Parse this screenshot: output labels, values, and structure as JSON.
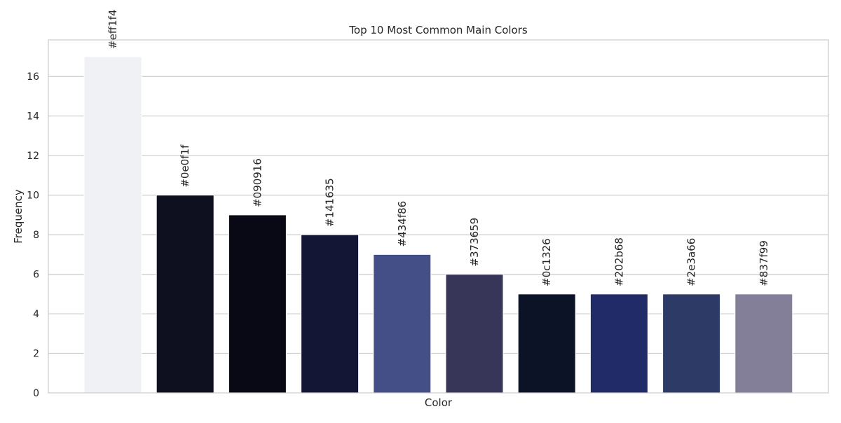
{
  "chart_data": {
    "type": "bar",
    "title": "Top 10 Most Common Main Colors",
    "xlabel": "Color",
    "ylabel": "Frequency",
    "categories": [
      "#eff1f4",
      "#0e0f1f",
      "#090916",
      "#141635",
      "#434f86",
      "#373659",
      "#0c1326",
      "#202b68",
      "#2e3a66",
      "#837f99"
    ],
    "values": [
      17,
      10,
      9,
      8,
      7,
      6,
      5,
      5,
      5,
      5
    ],
    "bar_colors": [
      "#eff1f4",
      "#0e0f1f",
      "#090916",
      "#141635",
      "#434f86",
      "#373659",
      "#0c1326",
      "#202b68",
      "#2e3a66",
      "#837f99"
    ],
    "ylim": [
      0,
      17.85
    ],
    "yticks": [
      0,
      2,
      4,
      6,
      8,
      10,
      12,
      14,
      16
    ],
    "grid": true,
    "x_tick_labels_shown": false
  }
}
